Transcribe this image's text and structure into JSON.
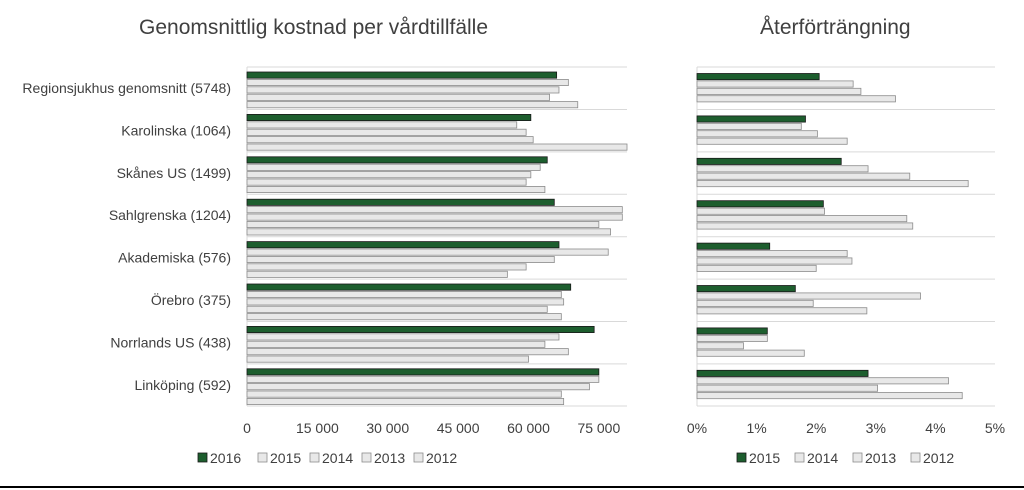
{
  "chart_data": [
    {
      "type": "bar",
      "orientation": "horizontal",
      "title": "Genomsnittlig kostnad per vårdtillfälle",
      "categories": [
        "Regionsjukhus genomsnitt (5748)",
        "Karolinska (1064)",
        "Skånes US (1499)",
        "Sahlgrenska (1204)",
        "Akademiska (576)",
        "Örebro (375)",
        "Norrlands US (438)",
        "Linköping (592)"
      ],
      "series": [
        {
          "name": "2016",
          "color": "#1d5e2e",
          "values": [
            66000,
            60500,
            64000,
            65500,
            66500,
            69000,
            74000,
            75000
          ]
        },
        {
          "name": "2015",
          "color": "#e8e8e8",
          "values": [
            68500,
            57500,
            62500,
            80000,
            77000,
            67000,
            66500,
            75000
          ]
        },
        {
          "name": "2014",
          "color": "#e8e8e8",
          "values": [
            66500,
            59500,
            60500,
            80000,
            65500,
            67500,
            63500,
            73000
          ]
        },
        {
          "name": "2013",
          "color": "#e8e8e8",
          "values": [
            64500,
            61000,
            59500,
            75000,
            59500,
            64000,
            68500,
            67000
          ]
        },
        {
          "name": "2012",
          "color": "#e8e8e8",
          "values": [
            70500,
            81000,
            63500,
            77500,
            55500,
            67000,
            60000,
            67500
          ]
        }
      ],
      "xlim": [
        0,
        81000
      ],
      "ticks": [
        0,
        15000,
        30000,
        45000,
        60000,
        75000
      ],
      "tick_labels": [
        "0",
        "15 000",
        "30 000",
        "45 000",
        "60 000",
        "75 000"
      ],
      "legend": [
        "2016",
        "2015",
        "2014",
        "2013",
        "2012"
      ],
      "legend_position": "bottom"
    },
    {
      "type": "bar",
      "orientation": "horizontal",
      "title": "Återförträngning",
      "categories": [
        "Regionsjukhus genomsnitt (5748)",
        "Karolinska (1064)",
        "Skånes US (1499)",
        "Sahlgrenska (1204)",
        "Akademiska (576)",
        "Örebro (375)",
        "Norrlands US (438)",
        "Linköping (592)"
      ],
      "series": [
        {
          "name": "2015",
          "color": "#1d5e2e",
          "values": [
            2.05,
            1.82,
            2.42,
            2.12,
            1.22,
            1.65,
            1.18,
            2.87
          ]
        },
        {
          "name": "2014",
          "color": "#e8e8e8",
          "values": [
            2.62,
            1.75,
            2.87,
            2.14,
            2.52,
            3.75,
            1.18,
            4.22
          ]
        },
        {
          "name": "2013",
          "color": "#e8e8e8",
          "values": [
            2.75,
            2.02,
            3.57,
            3.52,
            2.6,
            1.95,
            0.78,
            3.03
          ]
        },
        {
          "name": "2012",
          "color": "#e8e8e8",
          "values": [
            3.33,
            2.52,
            4.55,
            3.62,
            2.0,
            2.85,
            1.8,
            4.45
          ]
        }
      ],
      "xlim": [
        0,
        5
      ],
      "ticks": [
        0,
        1,
        2,
        3,
        4,
        5
      ],
      "tick_labels": [
        "0%",
        "1%",
        "2%",
        "3%",
        "4%",
        "5%"
      ],
      "legend": [
        "2015",
        "2014",
        "2013",
        "2012"
      ],
      "legend_position": "bottom"
    }
  ]
}
